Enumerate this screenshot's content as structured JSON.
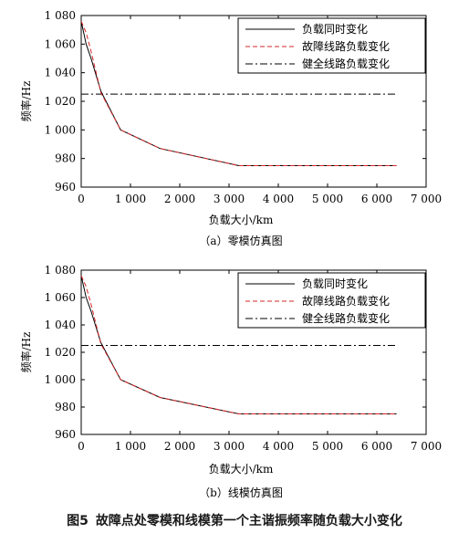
{
  "figure_number": "图5",
  "figure_title": "故障点处零模和线模第一个主谐振频率随负载大小变化",
  "chart_data": [
    {
      "type": "line",
      "caption": "（a）零模仿真图",
      "xlabel": "负载大小/km",
      "ylabel": "频率/Hz",
      "xlim": [
        0,
        7000
      ],
      "ylim": [
        960,
        1080
      ],
      "xticks": [
        0,
        1000,
        2000,
        3000,
        4000,
        5000,
        6000,
        7000
      ],
      "xtick_labels": [
        "0",
        "1 000",
        "2 000",
        "3 000",
        "4 000",
        "5 000",
        "6 000",
        "7 000"
      ],
      "yticks": [
        960,
        980,
        1000,
        1020,
        1040,
        1060,
        1080
      ],
      "ytick_labels": [
        "960",
        "980",
        "1 000",
        "1 020",
        "1 040",
        "1 060",
        "1 080"
      ],
      "grid": false,
      "legend_position": "top-right",
      "series": [
        {
          "name": "负载同时变化",
          "style": "solid",
          "color": "#000000",
          "x": [
            0,
            100,
            200,
            400,
            800,
            1600,
            3200,
            6400
          ],
          "y": [
            1076,
            1060,
            1050,
            1027,
            1000,
            987,
            975,
            975
          ]
        },
        {
          "name": "故障线路负载变化",
          "style": "dashed",
          "color": "#d62728",
          "x": [
            0,
            100,
            200,
            400,
            800,
            1600,
            3200,
            6400
          ],
          "y": [
            1076,
            1068,
            1055,
            1026,
            1000,
            987,
            975,
            975
          ]
        },
        {
          "name": "健全线路负载变化",
          "style": "dashdot",
          "color": "#000000",
          "x": [
            0,
            6400
          ],
          "y": [
            1025,
            1025
          ]
        }
      ]
    },
    {
      "type": "line",
      "caption": "（b）线模仿真图",
      "xlabel": "负载大小/km",
      "ylabel": "频率/Hz",
      "xlim": [
        0,
        7000
      ],
      "ylim": [
        960,
        1080
      ],
      "xticks": [
        0,
        1000,
        2000,
        3000,
        4000,
        5000,
        6000,
        7000
      ],
      "xtick_labels": [
        "0",
        "1 000",
        "2 000",
        "3 000",
        "4 000",
        "5 000",
        "6 000",
        "7 000"
      ],
      "yticks": [
        960,
        980,
        1000,
        1020,
        1040,
        1060,
        1080
      ],
      "ytick_labels": [
        "960",
        "980",
        "1 000",
        "1 020",
        "1 040",
        "1 060",
        "1 080"
      ],
      "grid": false,
      "legend_position": "top-right",
      "series": [
        {
          "name": "负载同时变化",
          "style": "solid",
          "color": "#000000",
          "x": [
            0,
            100,
            200,
            400,
            800,
            1600,
            3200,
            6400
          ],
          "y": [
            1076,
            1060,
            1050,
            1027,
            1000,
            987,
            975,
            975
          ]
        },
        {
          "name": "故障线路负载变化",
          "style": "dashed",
          "color": "#d62728",
          "x": [
            0,
            100,
            200,
            400,
            800,
            1600,
            3200,
            6400
          ],
          "y": [
            1076,
            1068,
            1055,
            1026,
            1000,
            987,
            975,
            975
          ]
        },
        {
          "name": "健全线路负载变化",
          "style": "dashdot",
          "color": "#000000",
          "x": [
            0,
            6400
          ],
          "y": [
            1025,
            1025
          ]
        }
      ]
    }
  ]
}
